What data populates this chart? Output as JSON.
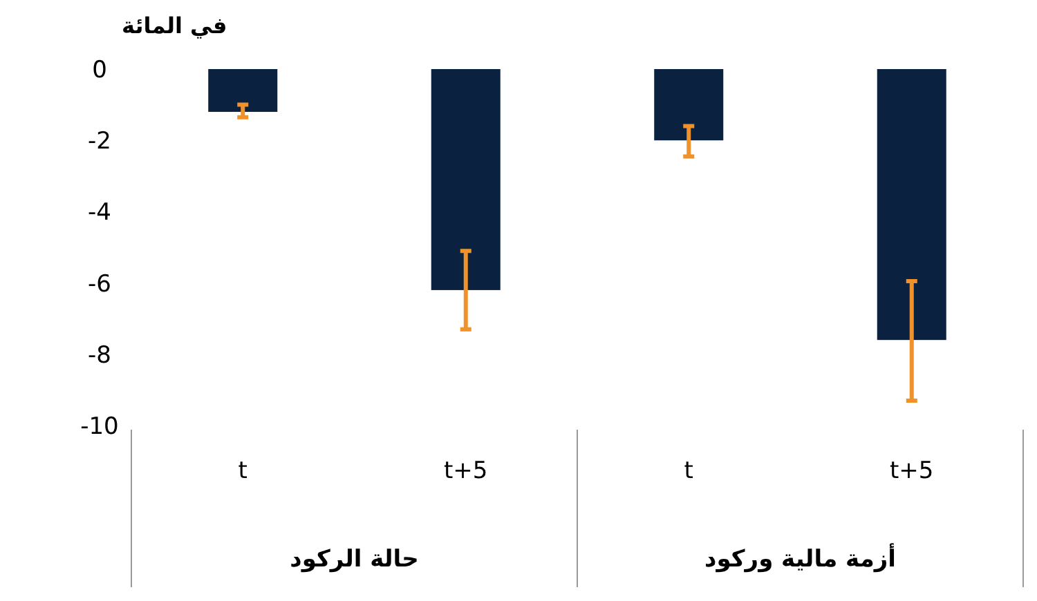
{
  "chart_data": {
    "type": "bar",
    "ylabel": "في المائة",
    "categories": [
      "t",
      "t+5",
      "t",
      "t+5"
    ],
    "values": [
      -1.2,
      -6.2,
      -2.0,
      -7.6
    ],
    "errors": [
      [
        -1.35,
        -1.0
      ],
      [
        -7.3,
        -5.1
      ],
      [
        -2.45,
        -1.6
      ],
      [
        -9.3,
        -5.95
      ]
    ],
    "color": "#0a2240",
    "ylim": [
      -10,
      0
    ],
    "yticks": [
      -10,
      -8,
      -6,
      -4,
      -2,
      0
    ],
    "annotations": [
      "حالة الركود",
      "أزمة مالية وركود"
    ]
  }
}
